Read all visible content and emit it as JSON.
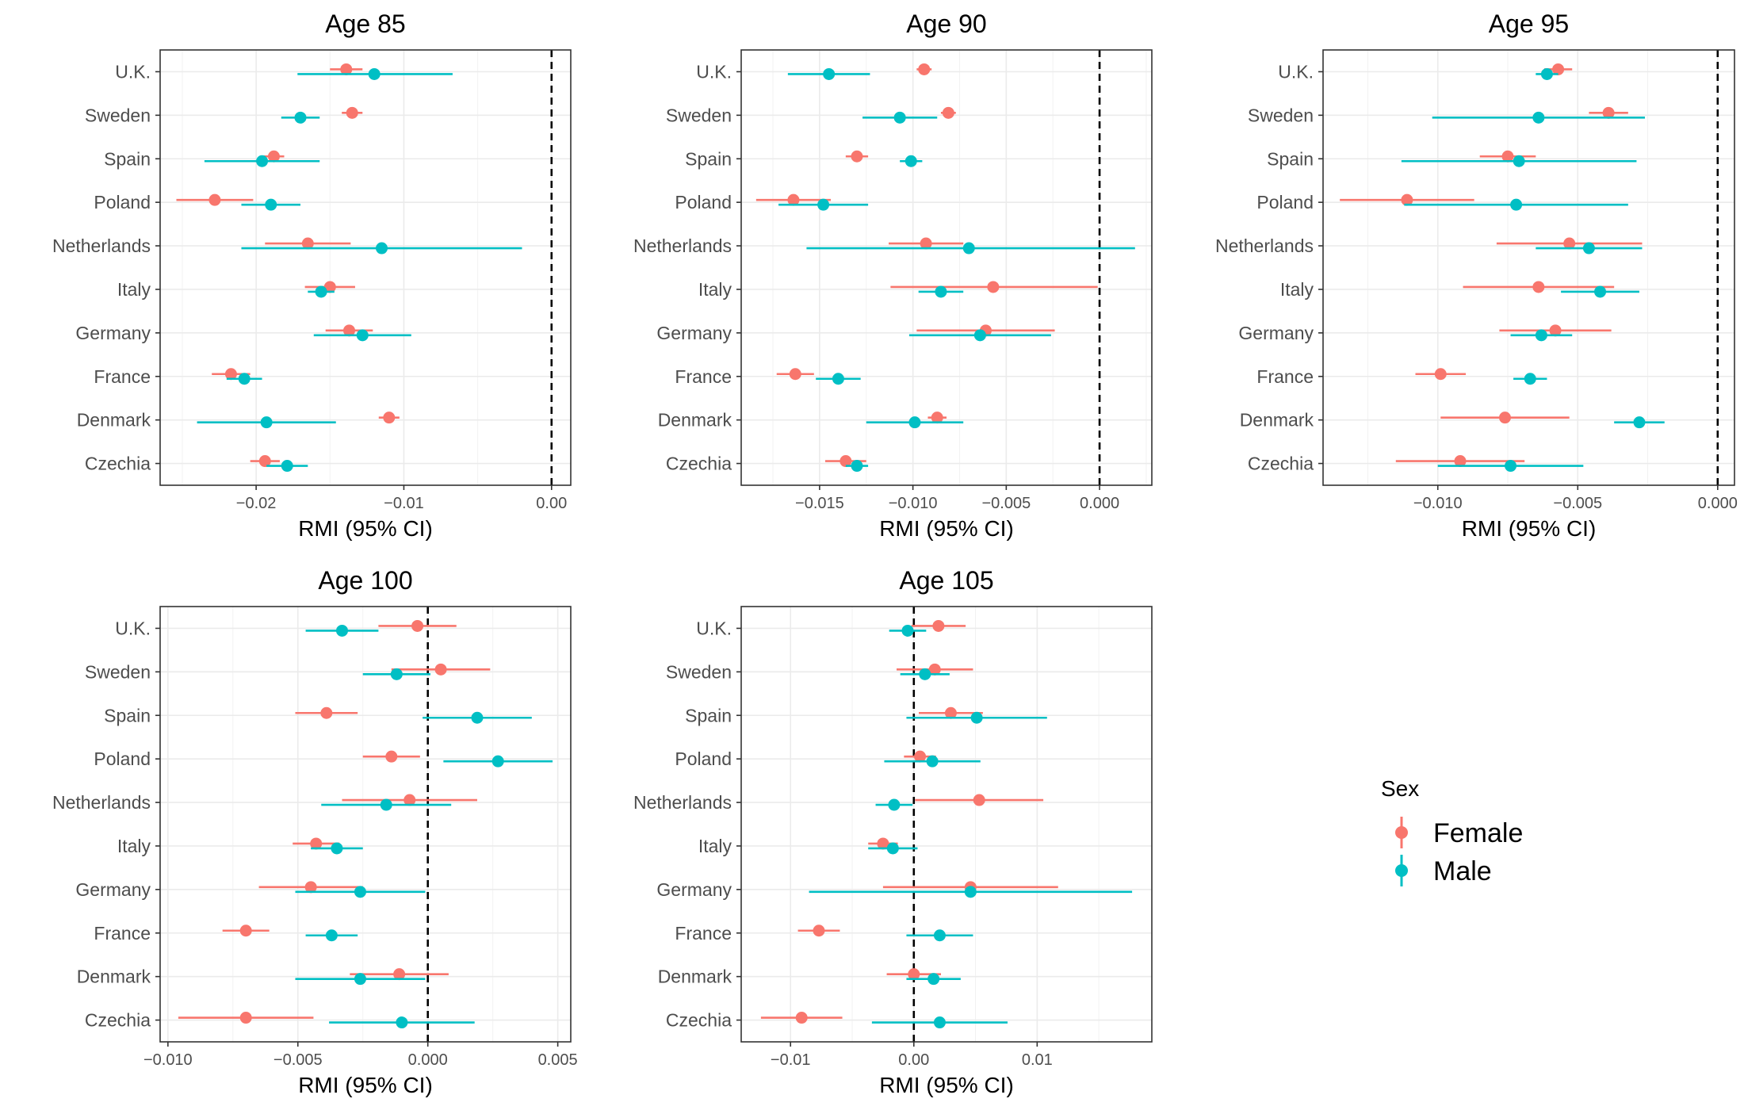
{
  "legend": {
    "title": "Sex",
    "entries": [
      {
        "name": "Female",
        "color": "#F8766D"
      },
      {
        "name": "Male",
        "color": "#00BFC4"
      }
    ]
  },
  "chart_data": [
    {
      "type": "scatter",
      "title": "Age 85",
      "xlabel": "RMI (95% CI)",
      "xlim": [
        -0.0265,
        0.0013
      ],
      "xticks": [
        -0.02,
        -0.01,
        0.0
      ],
      "xtick_labels": [
        "−0.02",
        "−0.01",
        "0.00"
      ],
      "reference_line": 0,
      "categories": [
        "U.K.",
        "Sweden",
        "Spain",
        "Poland",
        "Netherlands",
        "Italy",
        "Germany",
        "France",
        "Denmark",
        "Czechia"
      ],
      "series": [
        {
          "name": "Female",
          "values": [
            -0.0139,
            -0.0135,
            -0.0188,
            -0.0228,
            -0.0165,
            -0.015,
            -0.0137,
            -0.0217,
            -0.011,
            -0.0194
          ],
          "lower": [
            -0.015,
            -0.0142,
            -0.0195,
            -0.0254,
            -0.0194,
            -0.0167,
            -0.0153,
            -0.023,
            -0.0117,
            -0.0204
          ],
          "upper": [
            -0.0128,
            -0.0128,
            -0.0181,
            -0.0202,
            -0.0136,
            -0.0133,
            -0.0121,
            -0.0204,
            -0.0103,
            -0.0184
          ]
        },
        {
          "name": "Male",
          "values": [
            -0.012,
            -0.017,
            -0.0196,
            -0.019,
            -0.0115,
            -0.0156,
            -0.0128,
            -0.0208,
            -0.0193,
            -0.0179
          ],
          "lower": [
            -0.0172,
            -0.0183,
            -0.0235,
            -0.021,
            -0.021,
            -0.0165,
            -0.0161,
            -0.022,
            -0.024,
            -0.0193
          ],
          "upper": [
            -0.0067,
            -0.0157,
            -0.0157,
            -0.017,
            -0.002,
            -0.0147,
            -0.0095,
            -0.0196,
            -0.0146,
            -0.0165
          ]
        }
      ]
    },
    {
      "type": "scatter",
      "title": "Age 90",
      "xlabel": "RMI (95% CI)",
      "xlim": [
        -0.0192,
        0.0028
      ],
      "xticks": [
        -0.015,
        -0.01,
        -0.005,
        0.0
      ],
      "xtick_labels": [
        "−0.015",
        "−0.010",
        "−0.005",
        "0.000"
      ],
      "reference_line": 0,
      "categories": [
        "U.K.",
        "Sweden",
        "Spain",
        "Poland",
        "Netherlands",
        "Italy",
        "Germany",
        "France",
        "Denmark",
        "Czechia"
      ],
      "series": [
        {
          "name": "Female",
          "values": [
            -0.0094,
            -0.0081,
            -0.013,
            -0.0164,
            -0.0093,
            -0.0057,
            -0.0061,
            -0.0163,
            -0.0087,
            -0.0136
          ],
          "lower": [
            -0.0098,
            -0.0085,
            -0.0136,
            -0.0184,
            -0.0113,
            -0.0112,
            -0.0098,
            -0.0173,
            -0.0092,
            -0.0147
          ],
          "upper": [
            -0.009,
            -0.0077,
            -0.0124,
            -0.0144,
            -0.0073,
            -0.0001,
            -0.0024,
            -0.0153,
            -0.0082,
            -0.0125
          ]
        },
        {
          "name": "Male",
          "values": [
            -0.0145,
            -0.0107,
            -0.0101,
            -0.0148,
            -0.007,
            -0.0085,
            -0.0064,
            -0.014,
            -0.0099,
            -0.013
          ],
          "lower": [
            -0.0167,
            -0.0127,
            -0.0107,
            -0.0172,
            -0.0157,
            -0.0097,
            -0.0102,
            -0.0152,
            -0.0125,
            -0.0136
          ],
          "upper": [
            -0.0123,
            -0.0087,
            -0.0095,
            -0.0124,
            0.0019,
            -0.0073,
            -0.0026,
            -0.0128,
            -0.0073,
            -0.0124
          ]
        }
      ]
    },
    {
      "type": "scatter",
      "title": "Age 95",
      "xlabel": "RMI (95% CI)",
      "xlim": [
        -0.0141,
        0.0006
      ],
      "xticks": [
        -0.01,
        -0.005,
        0.0
      ],
      "xtick_labels": [
        "−0.010",
        "−0.005",
        "0.000"
      ],
      "reference_line": 0,
      "categories": [
        "U.K.",
        "Sweden",
        "Spain",
        "Poland",
        "Netherlands",
        "Italy",
        "Germany",
        "France",
        "Denmark",
        "Czechia"
      ],
      "series": [
        {
          "name": "Female",
          "values": [
            -0.0057,
            -0.0039,
            -0.0075,
            -0.0111,
            -0.0053,
            -0.0064,
            -0.0058,
            -0.0099,
            -0.0076,
            -0.0092
          ],
          "lower": [
            -0.0062,
            -0.0046,
            -0.0085,
            -0.0135,
            -0.0079,
            -0.0091,
            -0.0078,
            -0.0108,
            -0.0099,
            -0.0115
          ],
          "upper": [
            -0.0052,
            -0.0032,
            -0.0065,
            -0.0087,
            -0.0027,
            -0.0037,
            -0.0038,
            -0.009,
            -0.0053,
            -0.0069
          ]
        },
        {
          "name": "Male",
          "values": [
            -0.0061,
            -0.0064,
            -0.0071,
            -0.0072,
            -0.0046,
            -0.0042,
            -0.0063,
            -0.0067,
            -0.0028,
            -0.0074
          ],
          "lower": [
            -0.0065,
            -0.0102,
            -0.0113,
            -0.0112,
            -0.0065,
            -0.0056,
            -0.0074,
            -0.0073,
            -0.0037,
            -0.01
          ],
          "upper": [
            -0.0057,
            -0.0026,
            -0.0029,
            -0.0032,
            -0.0027,
            -0.0028,
            -0.0052,
            -0.0061,
            -0.0019,
            -0.0048
          ]
        }
      ]
    },
    {
      "type": "scatter",
      "title": "Age 100",
      "xlabel": "RMI (95% CI)",
      "xlim": [
        -0.0103,
        0.0055
      ],
      "xticks": [
        -0.01,
        -0.005,
        0.0,
        0.005
      ],
      "xtick_labels": [
        "−0.010",
        "−0.005",
        "0.000",
        "0.005"
      ],
      "reference_line": 0,
      "categories": [
        "U.K.",
        "Sweden",
        "Spain",
        "Poland",
        "Netherlands",
        "Italy",
        "Germany",
        "France",
        "Denmark",
        "Czechia"
      ],
      "series": [
        {
          "name": "Female",
          "values": [
            -0.0004,
            0.0005,
            -0.0039,
            -0.0014,
            -0.0007,
            -0.0043,
            -0.0045,
            -0.007,
            -0.0011,
            -0.007
          ],
          "lower": [
            -0.0019,
            -0.0014,
            -0.0051,
            -0.0025,
            -0.0033,
            -0.0052,
            -0.0065,
            -0.0079,
            -0.003,
            -0.0096
          ],
          "upper": [
            0.0011,
            0.0024,
            -0.0027,
            -0.0003,
            0.0019,
            -0.0034,
            -0.0025,
            -0.0061,
            0.0008,
            -0.0044
          ]
        },
        {
          "name": "Male",
          "values": [
            -0.0033,
            -0.0012,
            0.0019,
            0.0027,
            -0.0016,
            -0.0035,
            -0.0026,
            -0.0037,
            -0.0026,
            -0.001
          ],
          "lower": [
            -0.0047,
            -0.0025,
            -0.0002,
            0.0006,
            -0.0041,
            -0.0045,
            -0.0051,
            -0.0047,
            -0.0051,
            -0.0038
          ],
          "upper": [
            -0.0019,
            0.0001,
            0.004,
            0.0048,
            0.0009,
            -0.0025,
            -0.0001,
            -0.0027,
            -0.0001,
            0.0018
          ]
        }
      ]
    },
    {
      "type": "scatter",
      "title": "Age 105",
      "xlabel": "RMI (95% CI)",
      "xlim": [
        -0.014,
        0.0193
      ],
      "xticks": [
        -0.01,
        0.0,
        0.01
      ],
      "xtick_labels": [
        "−0.01",
        "0.00",
        "0.01"
      ],
      "reference_line": 0,
      "categories": [
        "U.K.",
        "Sweden",
        "Spain",
        "Poland",
        "Netherlands",
        "Italy",
        "Germany",
        "France",
        "Denmark",
        "Czechia"
      ],
      "series": [
        {
          "name": "Female",
          "values": [
            0.002,
            0.0017,
            0.003,
            0.0005,
            0.0053,
            -0.0025,
            0.0046,
            -0.0077,
            0.0,
            -0.0091
          ],
          "lower": [
            -0.0002,
            -0.0014,
            0.0004,
            -0.0008,
            0.0001,
            -0.0037,
            -0.0025,
            -0.0094,
            -0.0022,
            -0.0124
          ],
          "upper": [
            0.0042,
            0.0048,
            0.0056,
            0.0018,
            0.0105,
            -0.0013,
            0.0117,
            -0.006,
            0.0022,
            -0.0058
          ]
        },
        {
          "name": "Male",
          "values": [
            -0.0005,
            0.0009,
            0.0051,
            0.0015,
            -0.0016,
            -0.0017,
            0.0046,
            0.0021,
            0.0016,
            0.0021
          ],
          "lower": [
            -0.002,
            -0.0011,
            -0.0006,
            -0.0024,
            -0.0031,
            -0.0037,
            -0.0085,
            -0.0006,
            -0.0006,
            -0.0034
          ],
          "upper": [
            0.001,
            0.0029,
            0.0108,
            0.0054,
            -0.0001,
            0.0003,
            0.0177,
            0.0048,
            0.0038,
            0.0076
          ]
        }
      ]
    }
  ]
}
